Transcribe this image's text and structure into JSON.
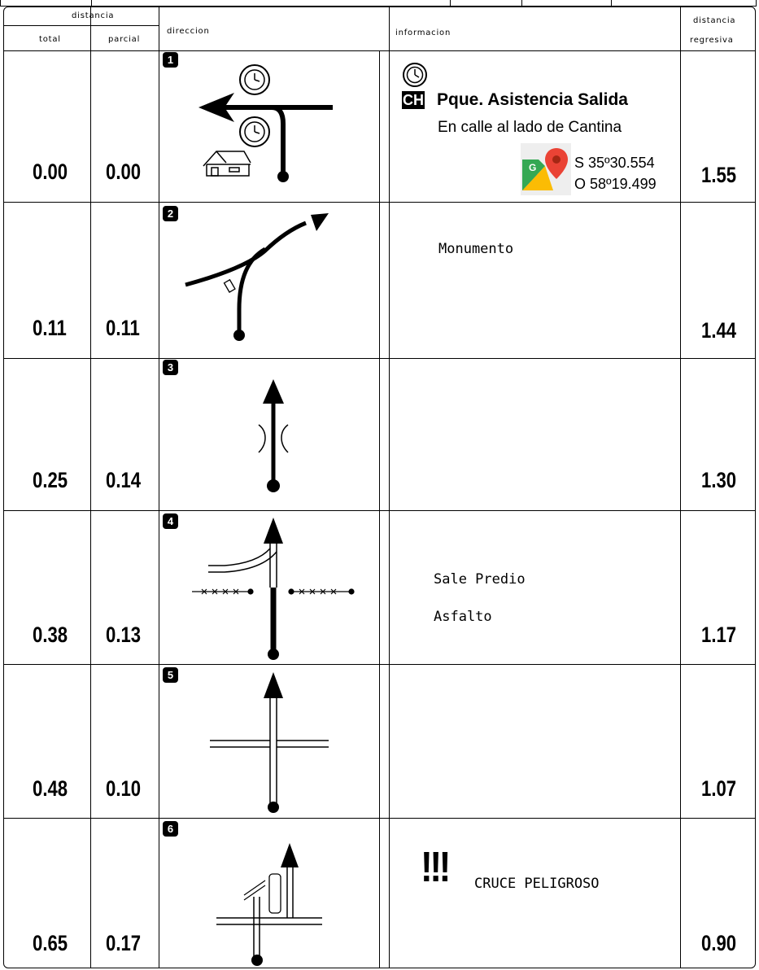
{
  "header": {
    "distancia": "distancia",
    "total": "total",
    "parcial": "parcial",
    "direccion": "direccion",
    "informacion": "informacion",
    "distancia_regresiva_top": "distancia",
    "distancia_regresiva_bottom": "regresiva"
  },
  "rows": [
    {
      "num": "1",
      "total": "0.00",
      "parcial": "0.00",
      "regresiva": "1.55"
    },
    {
      "num": "2",
      "total": "0.11",
      "parcial": "0.11",
      "regresiva": "1.44"
    },
    {
      "num": "3",
      "total": "0.25",
      "parcial": "0.14",
      "regresiva": "1.30"
    },
    {
      "num": "4",
      "total": "0.38",
      "parcial": "0.13",
      "regresiva": "1.17"
    },
    {
      "num": "5",
      "total": "0.48",
      "parcial": "0.10",
      "regresiva": "1.07"
    },
    {
      "num": "6",
      "total": "0.65",
      "parcial": "0.17",
      "regresiva": "0.90"
    }
  ],
  "info": {
    "r1_badge": "CH",
    "r1_title": "Pque. Asistencia Salida",
    "r1_sub": "En calle al lado de Cantina",
    "r1_lat": "S 35º30.554",
    "r1_lon": "O 58º19.499",
    "r2": "Monumento",
    "r4_a": "Sale Predio",
    "r4_b": "Asfalto",
    "r6_marks": "!!!",
    "r6": "CRUCE PELIGROSO"
  },
  "icons": {
    "maps": "google-maps-icon",
    "clock": "clock-icon",
    "house": "house-icon",
    "danger": "danger-exclamation-icon"
  },
  "colors": {
    "maps_red": "#ea4335",
    "maps_blue": "#4285f4",
    "maps_green": "#34a853",
    "maps_yellow": "#fbbc04"
  }
}
